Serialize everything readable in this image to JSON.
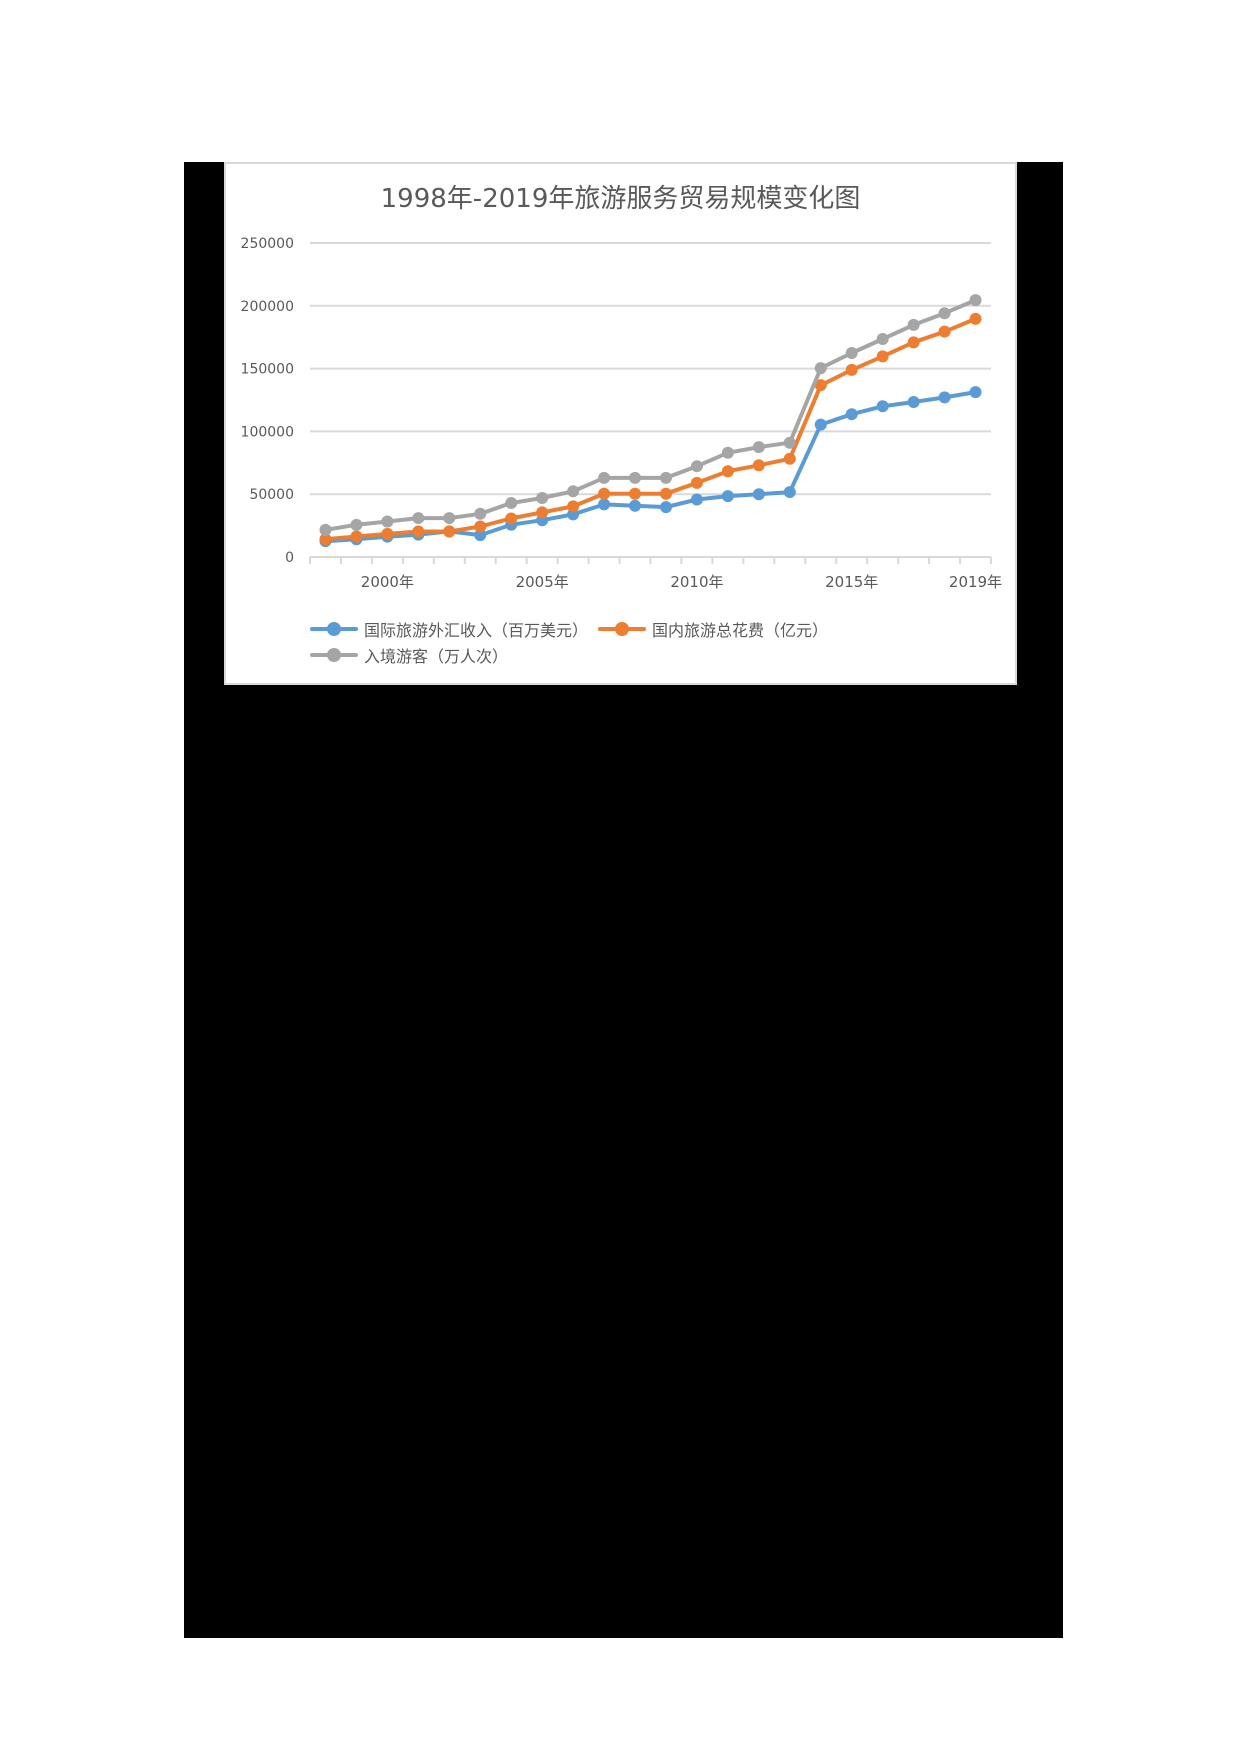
{
  "chart_data": {
    "type": "line",
    "title": "1998年-2019年旅游服务贸易规模变化图",
    "xlabel": "",
    "ylabel": "",
    "ylim": [
      0,
      250000
    ],
    "yticks": [
      0,
      50000,
      100000,
      150000,
      200000,
      250000
    ],
    "ytick_labels": [
      "0",
      "50000",
      "100000",
      "150000",
      "200000",
      "250000"
    ],
    "grid": true,
    "legend_position": "bottom",
    "categories": [
      "1998年",
      "1999年",
      "2000年",
      "2001年",
      "2002年",
      "2003年",
      "2004年",
      "2005年",
      "2006年",
      "2007年",
      "2008年",
      "2009年",
      "2010年",
      "2011年",
      "2012年",
      "2013年",
      "2014年",
      "2015年",
      "2016年",
      "2017年",
      "2018年",
      "2019年"
    ],
    "xtick_labels_shown": [
      {
        "index": 2,
        "label": "2000年"
      },
      {
        "index": 7,
        "label": "2005年"
      },
      {
        "index": 12,
        "label": "2010年"
      },
      {
        "index": 17,
        "label": "2015年"
      },
      {
        "index": 21,
        "label": "2019年"
      }
    ],
    "series": [
      {
        "name": "国际旅游外汇收入（百万美元）",
        "color": "#5b9bd5",
        "values": [
          12600,
          14100,
          16200,
          17800,
          20400,
          17400,
          25700,
          29300,
          33900,
          41900,
          40800,
          39700,
          45800,
          48500,
          50000,
          51700,
          105400,
          113700,
          120000,
          123400,
          127100,
          131300
        ]
      },
      {
        "name": "国内旅游总花费（亿元）",
        "color": "#ed7d31",
        "values": [
          14100,
          16300,
          18400,
          20300,
          20300,
          24300,
          30700,
          35500,
          40300,
          50400,
          50400,
          50400,
          59000,
          68300,
          73000,
          78200,
          136800,
          149000,
          159700,
          170900,
          179400,
          189600
        ]
      },
      {
        "name": "入境游客（万人次）",
        "color": "#a5a5a5",
        "values": [
          21600,
          25600,
          28300,
          31000,
          31000,
          34400,
          43000,
          47000,
          52300,
          63000,
          63000,
          63000,
          72300,
          83000,
          87500,
          91000,
          150400,
          162400,
          173600,
          184800,
          194100,
          204500
        ]
      }
    ]
  },
  "colors": {
    "grid": "#d9d9d9",
    "axis_text": "#595959",
    "background_block": "#000000"
  }
}
